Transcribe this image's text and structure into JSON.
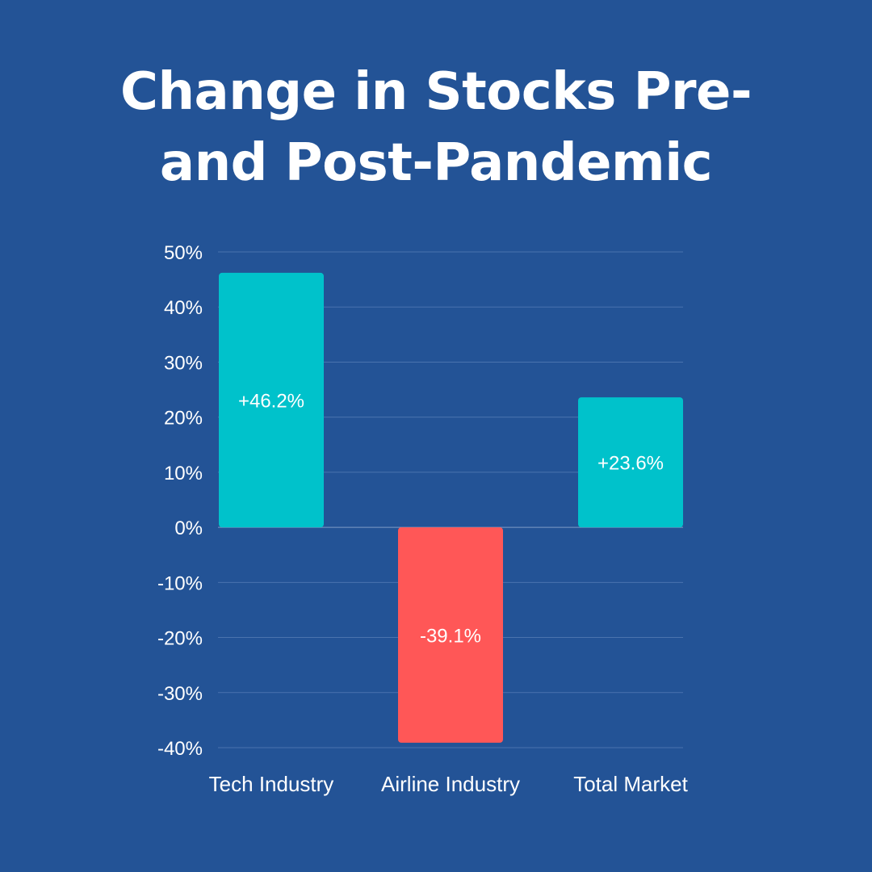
{
  "title_lines": [
    "Change in Stocks Pre-",
    "and Post-Pandemic"
  ],
  "colors": {
    "background": "#235396",
    "positive": "#00C2CB",
    "negative": "#FF5757",
    "grid": "#4A73AE",
    "text": "#FFFFFF"
  },
  "chart_data": {
    "type": "bar",
    "title": "Change in Stocks Pre- and Post-Pandemic",
    "categories": [
      "Tech Industry",
      "Airline Industry",
      "Total Market"
    ],
    "values": [
      46.2,
      -39.1,
      23.6
    ],
    "data_labels": [
      "+46.2%",
      "-39.1%",
      "+23.6%"
    ],
    "xlabel": "",
    "ylabel": "",
    "ylim": [
      -40,
      50
    ],
    "yticks": [
      50,
      40,
      30,
      20,
      10,
      0,
      -10,
      -20,
      -30,
      -40
    ],
    "ytick_labels": [
      "50%",
      "40%",
      "30%",
      "20%",
      "10%",
      "0%",
      "-10%",
      "-20%",
      "-30%",
      "-40%"
    ],
    "grid": true,
    "legend": "none"
  }
}
